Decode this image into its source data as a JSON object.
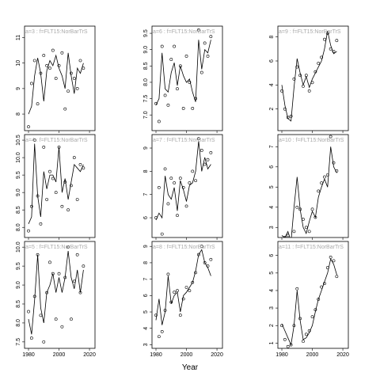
{
  "xlabel": "Year",
  "chart_data": [
    {
      "type": "line",
      "title": "a=3 : f=FLT15:NorBarTrS",
      "x": [
        1980,
        1982,
        1984,
        1986,
        1988,
        1990,
        1992,
        1994,
        1996,
        1998,
        2000,
        2002,
        2004,
        2006,
        2008,
        2010,
        2012,
        2014,
        2016
      ],
      "series": [
        {
          "style": "line",
          "color": "#000000",
          "values": [
            8.0,
            8.3,
            9.5,
            10.2,
            9.6,
            8.5,
            9.7,
            10.1,
            9.9,
            10.3,
            9.8,
            9.5,
            9.0,
            10.4,
            9.5,
            8.8,
            9.8,
            9.6,
            10.0
          ]
        },
        {
          "style": "points",
          "color": "#000000",
          "values": [
            7.5,
            9.2,
            10.1,
            8.4,
            9.6,
            10.3,
            9.9,
            9.8,
            10.5,
            9.4,
            9.9,
            10.4,
            8.2,
            8.9,
            9.6,
            9.4,
            9.0,
            10.1,
            9.8
          ]
        }
      ],
      "xlim": [
        1977.4,
        2023.6
      ],
      "xticks": [
        1980,
        2000,
        2020
      ],
      "ylim": [
        7.35,
        11.45
      ],
      "yticks": [
        8,
        9,
        10,
        11
      ]
    },
    {
      "type": "line",
      "title": "a=4 : f=FLT15:NorBarTrS",
      "x": [
        1980,
        1982,
        1984,
        1986,
        1988,
        1990,
        1992,
        1994,
        1996,
        1998,
        2000,
        2002,
        2004,
        2006,
        2008,
        2010,
        2012,
        2014,
        2016
      ],
      "series": [
        {
          "style": "line",
          "color": "#000000",
          "values": [
            8.1,
            8.3,
            10.4,
            8.9,
            8.3,
            9.6,
            9.1,
            9.5,
            9.5,
            9.3,
            10.3,
            9.0,
            9.4,
            8.8,
            9.3,
            9.8,
            9.7,
            9.6,
            9.8
          ]
        },
        {
          "style": "points",
          "color": "#000000",
          "values": [
            7.9,
            8.6,
            10.5,
            8.9,
            8.1,
            10.3,
            8.8,
            9.6,
            9.4,
            9.0,
            10.3,
            8.6,
            9.3,
            8.5,
            9.2,
            10.0,
            8.8,
            9.8,
            9.7
          ]
        }
      ],
      "xlim": [
        1977.4,
        2023.6
      ],
      "xticks": [
        1980,
        2000,
        2020
      ],
      "ylim": [
        7.71,
        10.66
      ],
      "yticks": [
        {
          "value": 8,
          "label": "8.0"
        },
        8.5,
        {
          "value": 9,
          "label": "9.0"
        },
        9.5,
        {
          "value": 10,
          "label": "10.0"
        },
        10.5
      ]
    },
    {
      "type": "line",
      "title": "a=5 : f=FLT15:NorBarTrS",
      "x": [
        1980,
        1982,
        1984,
        1986,
        1988,
        1990,
        1992,
        1994,
        1996,
        1998,
        2000,
        2002,
        2004,
        2006,
        2008,
        2010,
        2012,
        2014,
        2016
      ],
      "series": [
        {
          "style": "line",
          "color": "#000000",
          "values": [
            8.1,
            7.7,
            8.6,
            9.8,
            8.4,
            8.0,
            8.8,
            9.0,
            9.3,
            8.8,
            9.2,
            8.8,
            9.2,
            9.9,
            9.2,
            8.9,
            9.4,
            8.8,
            9.4
          ]
        },
        {
          "style": "points",
          "color": "#000000",
          "values": [
            8.3,
            7.6,
            8.7,
            9.8,
            8.2,
            7.5,
            8.8,
            9.6,
            9.3,
            8.1,
            9.3,
            7.9,
            9.2,
            10.0,
            8.1,
            9.1,
            9.8,
            8.8,
            9.5
          ]
        }
      ],
      "xlim": [
        1977.4,
        2023.6
      ],
      "xticks": [
        1980,
        2000,
        2020
      ],
      "ylim": [
        7.33,
        10.15
      ],
      "yticks": [
        7.5,
        {
          "value": 8,
          "label": "8.0"
        },
        8.5,
        {
          "value": 9,
          "label": "9.0"
        },
        9.5,
        {
          "value": 10,
          "label": "10.0"
        }
      ]
    },
    {
      "type": "line",
      "title": "a=6 : f=FLT15:NorBarTrS",
      "x": [
        1980,
        1982,
        1984,
        1986,
        1988,
        1990,
        1992,
        1994,
        1996,
        1998,
        2000,
        2002,
        2004,
        2006,
        2008,
        2010,
        2012,
        2014,
        2016
      ],
      "series": [
        {
          "style": "line",
          "color": "#000000",
          "values": [
            7.3,
            7.5,
            8.9,
            7.8,
            7.7,
            8.3,
            8.6,
            7.9,
            8.5,
            8.2,
            8.0,
            8.1,
            7.7,
            7.4,
            9.3,
            8.4,
            9.0,
            8.9,
            9.3
          ]
        },
        {
          "style": "points",
          "color": "#000000",
          "values": [
            7.35,
            6.8,
            9.1,
            7.6,
            7.3,
            8.7,
            9.1,
            7.8,
            8.5,
            7.2,
            8.8,
            8.0,
            7.2,
            7.5,
            9.6,
            8.3,
            9.2,
            8.8,
            9.4
          ]
        }
      ],
      "xlim": [
        1977.4,
        2023.6
      ],
      "xticks": [
        1980,
        2000,
        2020
      ],
      "ylim": [
        6.52,
        9.72
      ],
      "yticks": [
        {
          "value": 7,
          "label": "7.0"
        },
        7.5,
        {
          "value": 8,
          "label": "8.0"
        },
        8.5,
        {
          "value": 9,
          "label": "9.0"
        },
        9.5
      ]
    },
    {
      "type": "line",
      "title": "a=7 : f=FLT15:NorBarTrS",
      "x": [
        1980,
        1982,
        1984,
        1986,
        1988,
        1990,
        1992,
        1994,
        1996,
        1998,
        2000,
        2002,
        2004,
        2006,
        2008,
        2010,
        2012,
        2014,
        2016
      ],
      "series": [
        {
          "style": "line",
          "color": "#000000",
          "values": [
            5.9,
            6.2,
            6.0,
            7.8,
            7.0,
            6.8,
            7.3,
            6.3,
            7.6,
            7.2,
            6.7,
            7.4,
            7.5,
            8.0,
            9.3,
            8.0,
            8.6,
            8.1,
            8.3
          ]
        },
        {
          "style": "points",
          "color": "#000000",
          "values": [
            6.0,
            7.3,
            5.3,
            8.1,
            6.6,
            7.7,
            7.5,
            6.1,
            7.7,
            7.3,
            6.5,
            7.5,
            8.0,
            7.6,
            9.4,
            8.9,
            8.3,
            8.5,
            8.8
          ]
        }
      ],
      "xlim": [
        1977.4,
        2023.6
      ],
      "xticks": [
        1980,
        2000,
        2020
      ],
      "ylim": [
        5.15,
        9.58
      ],
      "yticks": [
        6,
        7,
        8,
        9
      ]
    },
    {
      "type": "line",
      "title": "a=8 : f=FLT15:NorBarTrS",
      "x": [
        1980,
        1982,
        1984,
        1986,
        1988,
        1990,
        1992,
        1994,
        1996,
        1998,
        2000,
        2002,
        2004,
        2006,
        2008,
        2010,
        2012,
        2014,
        2016
      ],
      "series": [
        {
          "style": "line",
          "color": "#000000",
          "values": [
            4.5,
            5.8,
            4.2,
            5.0,
            7.2,
            5.5,
            6.0,
            6.2,
            5.0,
            6.0,
            6.2,
            6.5,
            6.8,
            7.5,
            8.5,
            8.8,
            8.0,
            7.7,
            7.2
          ]
        },
        {
          "style": "points",
          "color": "#000000",
          "values": [
            4.8,
            3.5,
            3.8,
            5.1,
            7.3,
            5.6,
            6.2,
            6.3,
            4.8,
            5.8,
            6.5,
            6.3,
            6.8,
            7.4,
            8.5,
            9.0,
            8.0,
            7.8,
            8.2
          ]
        }
      ],
      "xlim": [
        1977.4,
        2023.6
      ],
      "xticks": [
        1980,
        2000,
        2020
      ],
      "ylim": [
        2.78,
        9.3
      ],
      "yticks": [
        3,
        4,
        5,
        6,
        7,
        8,
        9
      ]
    },
    {
      "type": "line",
      "title": "a=9 : f=FLT15:NorBarTrS",
      "x": [
        1980,
        1982,
        1984,
        1986,
        1988,
        1990,
        1992,
        1994,
        1996,
        1998,
        2000,
        2002,
        2004,
        2006,
        2008,
        2010,
        2012,
        2014,
        2016
      ],
      "series": [
        {
          "style": "line",
          "color": "#000000",
          "values": [
            4.0,
            2.3,
            1.2,
            1.0,
            3.8,
            6.2,
            5.0,
            4.0,
            4.7,
            3.8,
            4.5,
            5.0,
            5.5,
            6.0,
            7.0,
            8.5,
            7.3,
            6.6,
            6.8
          ]
        },
        {
          "style": "points",
          "color": "#000000",
          "values": [
            3.5,
            2.0,
            1.3,
            1.4,
            4.5,
            5.5,
            4.8,
            3.9,
            4.8,
            3.5,
            4.2,
            5.1,
            5.8,
            6.3,
            7.8,
            8.3,
            7.0,
            6.8,
            7.7
          ]
        }
      ],
      "xlim": [
        1977.4,
        2023.6
      ],
      "xticks": [
        1980,
        2000,
        2020
      ],
      "ylim": [
        0.2,
        8.9
      ],
      "yticks": [
        2,
        4,
        6,
        8
      ]
    },
    {
      "type": "line",
      "title": "a=10 : f=FLT15:NorBarTrS",
      "x": [
        1980,
        1982,
        1984,
        1986,
        1988,
        1990,
        1992,
        1994,
        1996,
        1998,
        2000,
        2002,
        2004,
        2006,
        2008,
        2010,
        2012,
        2014,
        2016
      ],
      "series": [
        {
          "style": "line",
          "color": "#000000",
          "values": [
            2.6,
            2.5,
            2.8,
            2.3,
            4.0,
            5.5,
            3.9,
            3.0,
            2.7,
            3.3,
            3.8,
            3.5,
            4.5,
            5.0,
            5.4,
            5.0,
            7.0,
            6.0,
            5.7
          ]
        },
        {
          "style": "points",
          "color": "#000000",
          "values": [
            2.4,
            2.5,
            2.6,
            2.3,
            2.8,
            4.0,
            3.9,
            3.4,
            3.0,
            2.8,
            3.9,
            3.5,
            4.8,
            5.2,
            5.5,
            5.6,
            7.5,
            6.2,
            5.8
          ]
        }
      ],
      "xlim": [
        1977.4,
        2023.6
      ],
      "xticks": [
        1980,
        2000,
        2020
      ],
      "ylim": [
        2.5,
        7.6
      ],
      "yticks": [
        3,
        4,
        5,
        6,
        7
      ]
    },
    {
      "type": "line",
      "title": "a=11 : f=FLT15:NorBarTrS",
      "x": [
        1980,
        1982,
        1984,
        1986,
        1988,
        1990,
        1992,
        1994,
        1996,
        1998,
        2000,
        2002,
        2004,
        2006,
        2008,
        2010,
        2012,
        2014,
        2016
      ],
      "series": [
        {
          "style": "line",
          "color": "#000000",
          "values": [
            2.1,
            1.7,
            1.3,
            0.9,
            2.0,
            4.0,
            2.3,
            1.2,
            1.3,
            1.6,
            2.0,
            2.8,
            3.5,
            4.0,
            4.5,
            5.0,
            5.8,
            5.5,
            4.9
          ]
        },
        {
          "style": "points",
          "color": "#000000",
          "values": [
            2.0,
            1.2,
            0.8,
            0.9,
            2.0,
            4.1,
            2.4,
            1.1,
            1.5,
            1.7,
            2.5,
            2.9,
            3.5,
            4.2,
            4.4,
            5.3,
            5.9,
            5.7,
            4.8
          ]
        }
      ],
      "xlim": [
        1977.4,
        2023.6
      ],
      "xticks": [
        1980,
        2000,
        2020
      ],
      "ylim": [
        0.7,
        6.8
      ],
      "yticks": [
        1,
        2,
        3,
        4,
        5,
        6
      ]
    }
  ]
}
